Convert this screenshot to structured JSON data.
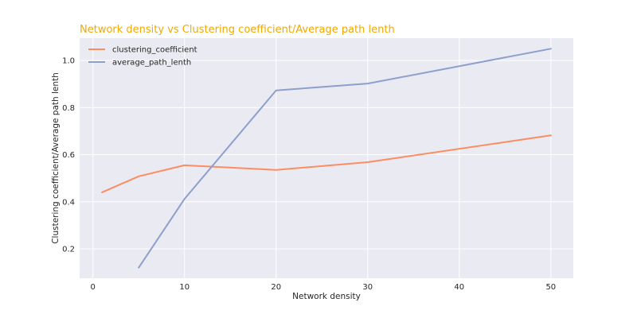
{
  "chart_data": {
    "type": "line",
    "title": "Network density vs Clustering coefficient/Average path lenth",
    "title_color": "#F2A900",
    "xlabel": "Network density",
    "ylabel": "Clustering coefficient/Average path lenth",
    "xlim": [
      -1.45,
      52.45
    ],
    "ylim": [
      0.075,
      1.095
    ],
    "x_ticks": [
      0,
      10,
      20,
      30,
      40,
      50
    ],
    "x_tick_labels": [
      "0",
      "10",
      "20",
      "30",
      "40",
      "50"
    ],
    "y_ticks": [
      0.2,
      0.4,
      0.6,
      0.8,
      1.0
    ],
    "y_tick_labels": [
      "0.2",
      "0.4",
      "0.6",
      "0.8",
      "1.0"
    ],
    "grid": true,
    "background": "#EAEAF2",
    "legend_position": "top-left",
    "series": [
      {
        "name": "clustering_coefficient",
        "color": "#FC8D62",
        "x": [
          1,
          5,
          10,
          20,
          30,
          50
        ],
        "y": [
          0.44,
          0.508,
          0.555,
          0.535,
          0.568,
          0.682
        ]
      },
      {
        "name": "average_path_lenth",
        "color": "#8DA0CB",
        "x": [
          5,
          10,
          20,
          30,
          50
        ],
        "y": [
          0.12,
          0.412,
          0.873,
          0.902,
          1.05
        ]
      }
    ]
  }
}
